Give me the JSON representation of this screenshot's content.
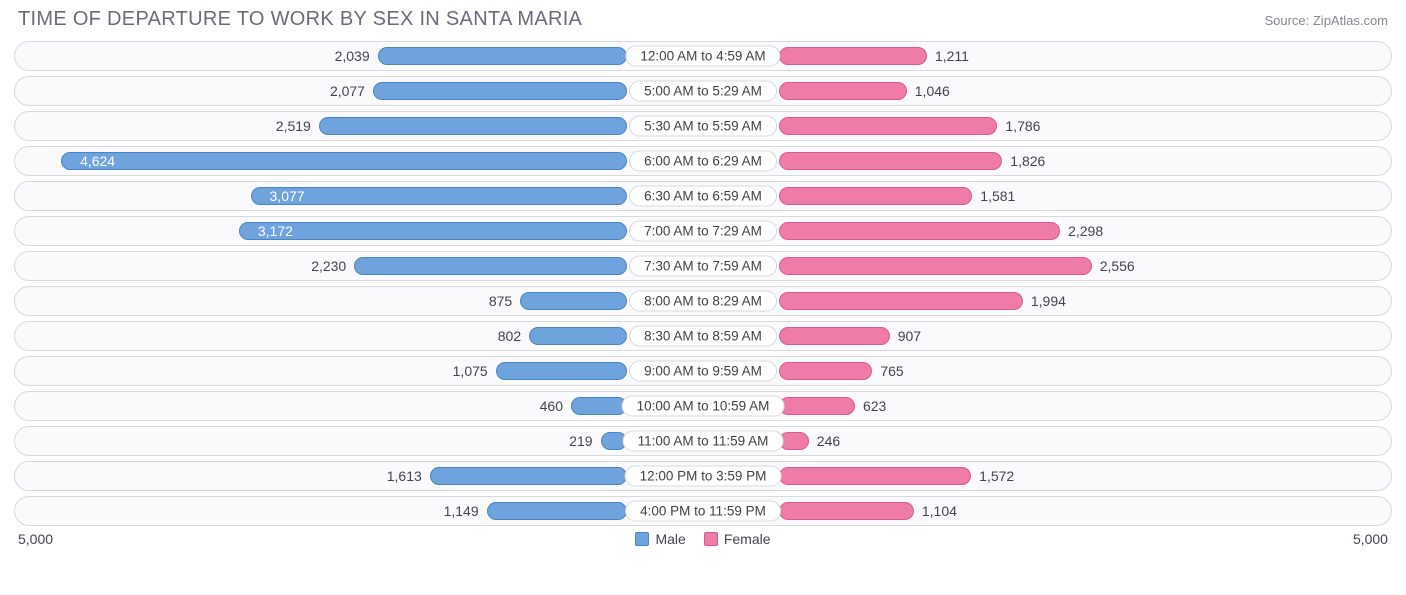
{
  "title": "TIME OF DEPARTURE TO WORK BY SEX IN SANTA MARIA",
  "source": "Source: ZipAtlas.com",
  "chart": {
    "type": "diverging-bar",
    "max_value": 5000,
    "axis_left_label": "5,000",
    "axis_right_label": "5,000",
    "background_color": "#ffffff",
    "row_bg": "#fafafc",
    "row_border": "#d9d9dd",
    "male_color": "#6ea3dd",
    "male_border": "#4a84c4",
    "female_color": "#ee7ba8",
    "female_border": "#da5a8f",
    "label_fontsize": 14,
    "title_fontsize": 20,
    "title_color": "#6b6b7a",
    "rows": [
      {
        "label": "12:00 AM to 4:59 AM",
        "male": 2039,
        "male_fmt": "2,039",
        "female": 1211,
        "female_fmt": "1,211",
        "male_inside": false
      },
      {
        "label": "5:00 AM to 5:29 AM",
        "male": 2077,
        "male_fmt": "2,077",
        "female": 1046,
        "female_fmt": "1,046",
        "male_inside": false
      },
      {
        "label": "5:30 AM to 5:59 AM",
        "male": 2519,
        "male_fmt": "2,519",
        "female": 1786,
        "female_fmt": "1,786",
        "male_inside": false
      },
      {
        "label": "6:00 AM to 6:29 AM",
        "male": 4624,
        "male_fmt": "4,624",
        "female": 1826,
        "female_fmt": "1,826",
        "male_inside": true
      },
      {
        "label": "6:30 AM to 6:59 AM",
        "male": 3077,
        "male_fmt": "3,077",
        "female": 1581,
        "female_fmt": "1,581",
        "male_inside": true
      },
      {
        "label": "7:00 AM to 7:29 AM",
        "male": 3172,
        "male_fmt": "3,172",
        "female": 2298,
        "female_fmt": "2,298",
        "male_inside": true
      },
      {
        "label": "7:30 AM to 7:59 AM",
        "male": 2230,
        "male_fmt": "2,230",
        "female": 2556,
        "female_fmt": "2,556",
        "male_inside": false
      },
      {
        "label": "8:00 AM to 8:29 AM",
        "male": 875,
        "male_fmt": "875",
        "female": 1994,
        "female_fmt": "1,994",
        "male_inside": false
      },
      {
        "label": "8:30 AM to 8:59 AM",
        "male": 802,
        "male_fmt": "802",
        "female": 907,
        "female_fmt": "907",
        "male_inside": false
      },
      {
        "label": "9:00 AM to 9:59 AM",
        "male": 1075,
        "male_fmt": "1,075",
        "female": 765,
        "female_fmt": "765",
        "male_inside": false
      },
      {
        "label": "10:00 AM to 10:59 AM",
        "male": 460,
        "male_fmt": "460",
        "female": 623,
        "female_fmt": "623",
        "male_inside": false
      },
      {
        "label": "11:00 AM to 11:59 AM",
        "male": 219,
        "male_fmt": "219",
        "female": 246,
        "female_fmt": "246",
        "male_inside": false
      },
      {
        "label": "12:00 PM to 3:59 PM",
        "male": 1613,
        "male_fmt": "1,613",
        "female": 1572,
        "female_fmt": "1,572",
        "male_inside": false
      },
      {
        "label": "4:00 PM to 11:59 PM",
        "male": 1149,
        "male_fmt": "1,149",
        "female": 1104,
        "female_fmt": "1,104",
        "male_inside": false
      }
    ],
    "legend": {
      "male": "Male",
      "female": "Female"
    }
  }
}
